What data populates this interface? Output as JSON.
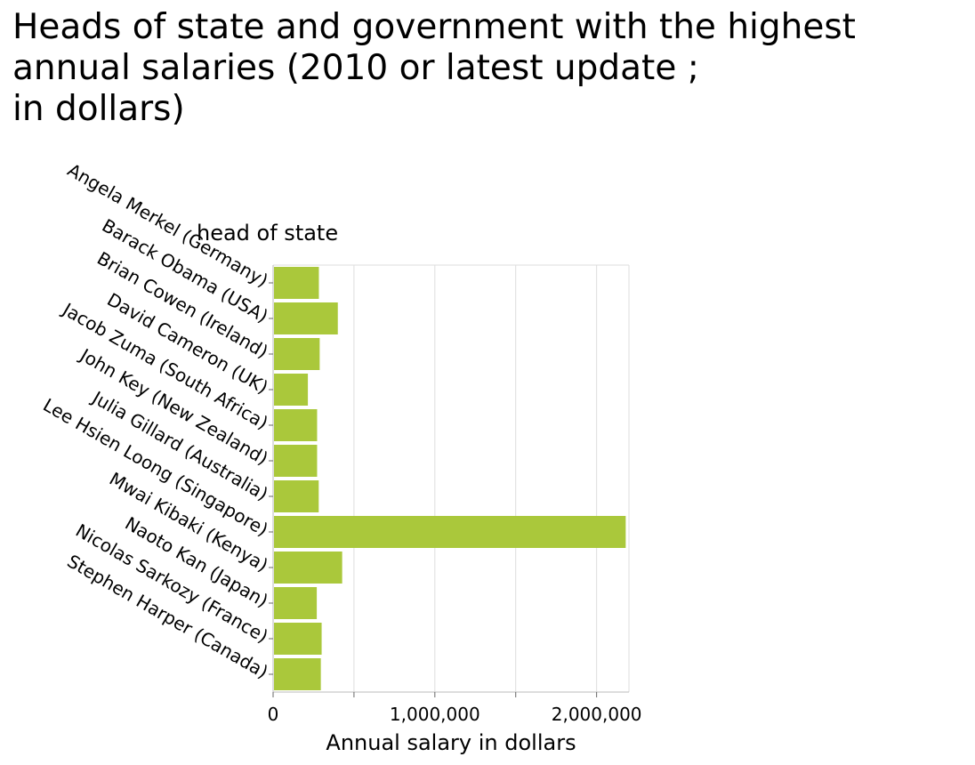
{
  "title_lines": [
    "Heads of state and government with the highest",
    "annual salaries (2010 or latest update ;",
    "in dollars)"
  ],
  "chart_data": {
    "type": "bar",
    "orientation": "horizontal",
    "title": "Heads of state and government with the highest annual salaries (2010 or latest update ; in dollars)",
    "ylabel": "head of state",
    "xlabel": "Annual salary in dollars",
    "categories": [
      "Angela Merkel (Germany)",
      "Barack Obama (USA)",
      "Brian Cowen (Ireland)",
      "David Cameron (UK)",
      "Jacob Zuma (South Africa)",
      "John Key (New Zealand)",
      "Julia Gillard (Australia)",
      "Lee Hsien Loong (Singapore)",
      "Mwai Kibaki (Kenya)",
      "Naoto Kan (Japan)",
      "Nicolas Sarkozy (France)",
      "Stephen Harper (Canada)"
    ],
    "values": [
      283000,
      400000,
      288000,
      215000,
      272000,
      272000,
      282000,
      2180000,
      427000,
      270000,
      300000,
      295000
    ],
    "xlim": [
      0,
      2200000
    ],
    "xticks": [
      0,
      500000,
      1000000,
      1500000,
      2000000
    ],
    "xtick_labels": [
      "0",
      "",
      "1,000,000",
      "",
      "2,000,000"
    ],
    "grid": true,
    "bar_color": "#aac83b"
  }
}
